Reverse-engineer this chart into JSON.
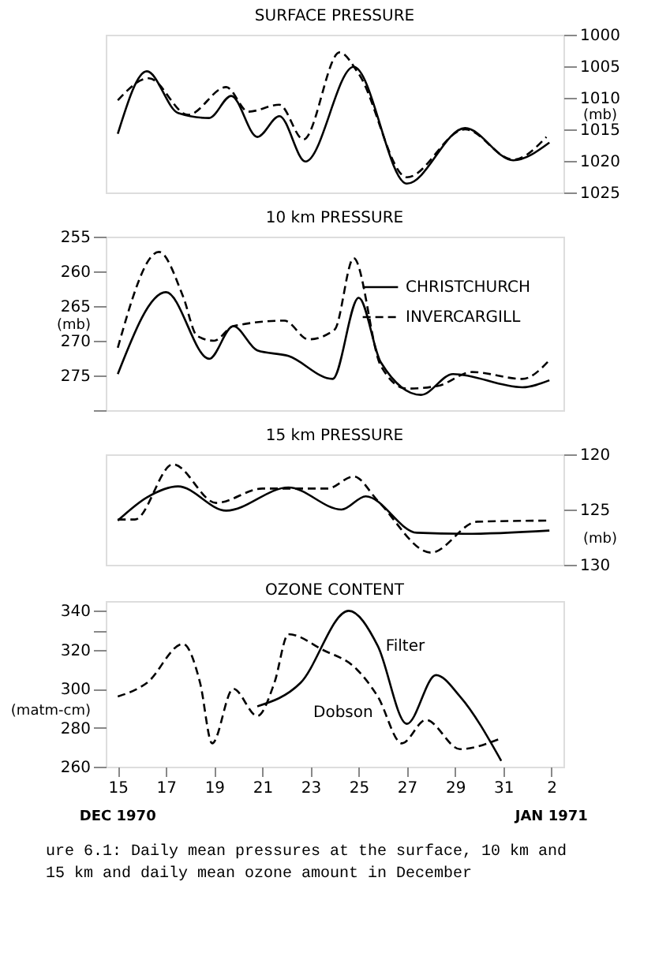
{
  "chart_data": [
    {
      "type": "line",
      "title": "SURFACE PRESSURE",
      "y2label": "(mb)",
      "xlim": [
        "1970-12-14T12:00",
        "1971-01-02T12:00"
      ],
      "y2lim": [
        1025,
        1000
      ],
      "y2ticks": [
        1000,
        1005,
        1010,
        1015,
        1020,
        1025
      ],
      "tick_labels": "y",
      "grid": false,
      "legend": false,
      "marker": "none",
      "series": [
        {
          "color": "#000000",
          "line_style": "solid",
          "axis": "y2",
          "x": [
            "1970-12-15",
            "1970-12-16T05:00",
            "1970-12-17T12:00",
            "1970-12-18T19:00",
            "1970-12-19T17:00",
            "1970-12-20T19:00",
            "1970-12-21T17:00",
            "1970-12-22T19:00",
            "1970-12-24T19:00",
            "1970-12-27",
            "1970-12-29T10:00",
            "1970-12-31T10:00",
            "1971-01-01T22:00"
          ],
          "values": [
            1015.7,
            1005.8,
            1012.4,
            1013.2,
            1009.7,
            1016.2,
            1012.9,
            1020.1,
            1005.1,
            1023.6,
            1014.8,
            1019.9,
            1017.1
          ]
        },
        {
          "color": "#000000",
          "line_style": "dashed",
          "axis": "y2",
          "x": [
            "1970-12-15",
            "1970-12-16T07:00",
            "1970-12-17T22:00",
            "1970-12-19T12:00",
            "1970-12-20T10:00",
            "1970-12-21T17:00",
            "1970-12-22T17:00",
            "1970-12-24T05:00",
            "1970-12-25",
            "1970-12-27",
            "1970-12-29T10:00",
            "1970-12-31T10:00",
            "1971-01-01T19:00"
          ],
          "values": [
            1010.4,
            1006.9,
            1012.7,
            1008.3,
            1012.2,
            1011.1,
            1016.6,
            1002.8,
            1006.2,
            1022.6,
            1015.0,
            1019.8,
            1016.2
          ]
        }
      ]
    },
    {
      "type": "line",
      "title": "10 km  PRESSURE",
      "ylabel": "(mb)",
      "xlim": [
        "1970-12-14T12:00",
        "1971-01-02T12:00"
      ],
      "ylim": [
        280,
        255
      ],
      "yticks": [
        255,
        260,
        265,
        270,
        275,
        {
          "value": 280,
          "label": null
        }
      ],
      "tick_labels": "y",
      "grid": false,
      "legend": "top right",
      "marker": "none",
      "series": [
        {
          "name": "CHRISTCHURCH",
          "color": "#000000",
          "line_style": "solid",
          "x": [
            "1970-12-15",
            "1970-12-17",
            "1970-12-18T19:00",
            "1970-12-19T19:00",
            "1970-12-20T19:00",
            "1970-12-22T02:00",
            "1970-12-23T22:00",
            "1970-12-25",
            "1970-12-25T22:00",
            "1970-12-27T14:00",
            "1970-12-28T22:00",
            "1970-12-31T19:00",
            "1971-01-01T22:00"
          ],
          "values": [
            274.8,
            263.0,
            272.6,
            267.9,
            271.4,
            272.2,
            275.5,
            263.8,
            273.1,
            277.8,
            274.8,
            276.7,
            275.7
          ]
        },
        {
          "name": "INVERCARGILL",
          "color": "#000000",
          "line_style": "dashed",
          "x": [
            "1970-12-15",
            "1970-12-16T17:00",
            "1970-12-17T17:00",
            "1970-12-18T07:00",
            "1970-12-19",
            "1970-12-19T19:00",
            "1970-12-21T22:00",
            "1970-12-22T22:00",
            "1970-12-24",
            "1970-12-24T19:00",
            "1970-12-25T22:00",
            "1970-12-27",
            "1970-12-28T07:00",
            "1970-12-29T17:00",
            "1970-12-31T19:00",
            "1971-01-01T22:00"
          ],
          "values": [
            271.0,
            257.2,
            263.6,
            269.3,
            270.0,
            267.9,
            267.1,
            269.8,
            268.4,
            258.1,
            273.6,
            276.9,
            276.5,
            274.5,
            275.5,
            272.8
          ]
        }
      ]
    },
    {
      "type": "line",
      "title": "15 km  PRESSURE",
      "y2label": "(mb)",
      "xlim": [
        "1970-12-14T12:00",
        "1971-01-02T12:00"
      ],
      "y2lim": [
        130,
        120
      ],
      "y2ticks": [
        120,
        125,
        130
      ],
      "tick_labels": "y",
      "grid": false,
      "legend": false,
      "marker": "none",
      "series": [
        {
          "color": "#000000",
          "line_style": "solid",
          "axis": "y2",
          "x": [
            "1970-12-15",
            "1970-12-16T05:00",
            "1970-12-17T12:00",
            "1970-12-19T12:00",
            "1970-12-22T02:00",
            "1970-12-24T07:00",
            "1970-12-25T07:00",
            "1970-12-27T10:00",
            "1970-12-29T10:00",
            "1971-01-01T22:00"
          ],
          "values": [
            126.0,
            123.9,
            122.9,
            125.1,
            123.0,
            125.0,
            123.8,
            127.1,
            127.2,
            126.9
          ]
        },
        {
          "color": "#000000",
          "line_style": "dashed",
          "axis": "y2",
          "x": [
            "1970-12-15",
            "1970-12-15T17:00",
            "1970-12-17T07:00",
            "1970-12-19T02:00",
            "1970-12-21",
            "1970-12-23T17:00",
            "1970-12-24T19:00",
            "1970-12-25T19:00",
            "1970-12-28",
            "1970-12-29T22:00",
            "1971-01-01T22:00"
          ],
          "values": [
            125.9,
            125.9,
            120.9,
            124.4,
            123.1,
            123.1,
            122.0,
            124.2,
            128.9,
            126.1,
            126.0
          ]
        }
      ]
    },
    {
      "type": "line",
      "title": "OZONE CONTENT",
      "ylabel": "(matm-cm)",
      "xlim": [
        "1970-12-14T12:00",
        "1971-01-02T12:00"
      ],
      "ylim": [
        260,
        345
      ],
      "yticks": [
        260,
        280,
        300,
        320,
        {
          "value": 330,
          "label": null
        },
        340
      ],
      "xticks": [
        {
          "value": "1970-12-15",
          "label": "15"
        },
        {
          "value": "1970-12-17",
          "label": "17"
        },
        {
          "value": "1970-12-19",
          "label": "19"
        },
        {
          "value": "1970-12-21",
          "label": "21"
        },
        {
          "value": "1970-12-23",
          "label": "23"
        },
        {
          "value": "1970-12-25",
          "label": "25"
        },
        {
          "value": "1970-12-27",
          "label": "27"
        },
        {
          "value": "1970-12-29",
          "label": "29"
        },
        {
          "value": "1970-12-31",
          "label": "31"
        },
        {
          "value": "1971-01-02",
          "label": "2"
        }
      ],
      "grid": false,
      "legend": false,
      "marker": "none",
      "series": [
        {
          "name": "Filter",
          "color": "#000000",
          "line_style": "solid",
          "x": [
            "1970-12-20T19:00",
            "1970-12-22T14:00",
            "1970-12-24T14:00",
            "1970-12-25T19:00",
            "1970-12-27",
            "1970-12-28T05:00",
            "1970-12-29T05:00",
            "1970-12-30T22:00"
          ],
          "values": [
            291,
            303,
            340,
            322,
            282,
            307,
            296,
            263
          ]
        },
        {
          "name": "Dobson",
          "color": "#000000",
          "line_style": "dashed",
          "x": [
            "1970-12-15",
            "1970-12-16T05:00",
            "1970-12-17T17:00",
            "1970-12-18T10:00",
            "1970-12-18T22:00",
            "1970-12-19T19:00",
            "1970-12-20T19:00",
            "1970-12-21T12:00",
            "1970-12-22T02:00",
            "1970-12-23T12:00",
            "1970-12-24T22:00",
            "1970-12-25T19:00",
            "1970-12-26T19:00",
            "1970-12-27T19:00",
            "1970-12-29T05:00",
            "1970-12-30T19:00"
          ],
          "values": [
            296,
            303,
            323,
            303,
            272,
            300,
            286,
            303,
            328,
            320,
            310,
            296,
            272,
            284,
            269,
            274
          ]
        }
      ],
      "annotations": [
        "DEC 1970",
        "JAN 1971",
        "ure 6.1:  Daily mean pressures at the surface, 10 km and",
        "15 km and daily mean ozone amount in December"
      ]
    }
  ]
}
